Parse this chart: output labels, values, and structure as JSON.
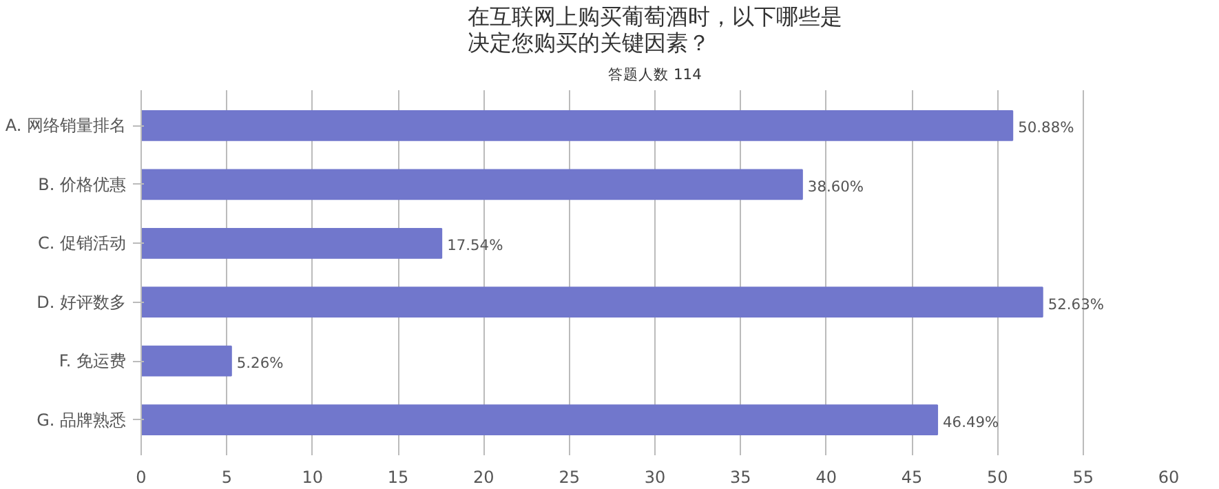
{
  "chart_data": {
    "type": "bar",
    "orientation": "horizontal",
    "title": "在互联网上购买葡萄酒时，以下哪些是决定您购买的关键因素？",
    "subtitle": "答题人数 114",
    "categories": [
      "A. 网络销量排名",
      "B. 价格优惠",
      "C. 促销活动",
      "D. 好评数多",
      "F. 免运费",
      "G. 品牌熟悉"
    ],
    "values": [
      50.88,
      38.6,
      17.54,
      52.63,
      5.26,
      46.49
    ],
    "value_labels": [
      "50.88%",
      "38.60%",
      "17.54%",
      "52.63%",
      "5.26%",
      "46.49%"
    ],
    "color": "#7177cc",
    "xlim": [
      0,
      60
    ],
    "xticks": [
      0,
      5,
      10,
      15,
      20,
      25,
      30,
      35,
      40,
      45,
      50,
      55,
      60
    ],
    "grid": "x"
  }
}
